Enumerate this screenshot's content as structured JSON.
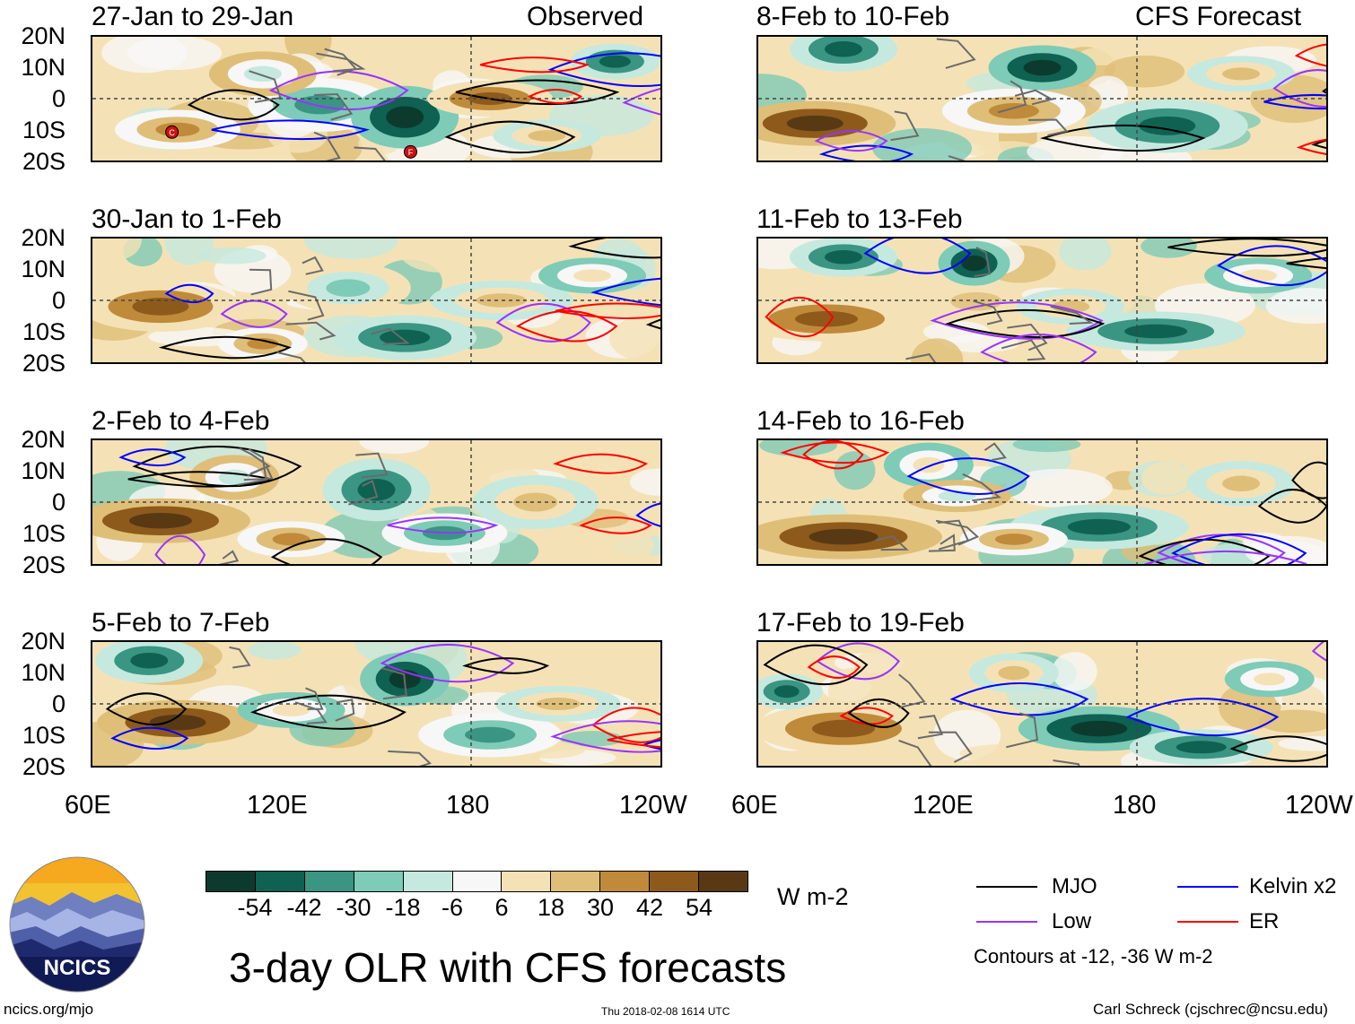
{
  "header": {
    "left_column_label": "Observed",
    "right_column_label": "CFS Forecast"
  },
  "panels": {
    "left": [
      {
        "title": "27-Jan to 29-Jan"
      },
      {
        "title": "30-Jan to 1-Feb"
      },
      {
        "title": "2-Feb to 4-Feb"
      },
      {
        "title": "5-Feb to 7-Feb"
      }
    ],
    "right": [
      {
        "title": "8-Feb to 10-Feb"
      },
      {
        "title": "11-Feb to 13-Feb"
      },
      {
        "title": "14-Feb to 16-Feb"
      },
      {
        "title": "17-Feb to 19-Feb"
      }
    ]
  },
  "axes": {
    "lat_labels": [
      "20N",
      "10N",
      "0",
      "10S",
      "20S"
    ],
    "lon_labels": [
      "60E",
      "120E",
      "180",
      "120W"
    ],
    "lat_range": [
      -20,
      20
    ],
    "lon_range": [
      60,
      240
    ]
  },
  "cyclone_markers": [
    "C",
    "F"
  ],
  "colorbar": {
    "ticks": [
      "-54",
      "-42",
      "-30",
      "-18",
      "-6",
      "6",
      "18",
      "30",
      "42",
      "54"
    ],
    "colors": [
      "#0c3b2e",
      "#0f6152",
      "#3a9583",
      "#7ecbb7",
      "#c5e9df",
      "#f7f7f7",
      "#f4e2b6",
      "#dfbe78",
      "#c08a3b",
      "#8d5a1c",
      "#593914"
    ],
    "units": "W m-2"
  },
  "title": "3-day OLR with CFS forecasts",
  "legend": {
    "items": [
      {
        "label": "MJO",
        "color": "#000000"
      },
      {
        "label": "Kelvin x2",
        "color": "#0000ff"
      },
      {
        "label": "Low",
        "color": "#9933ff"
      },
      {
        "label": "ER",
        "color": "#ff0000"
      }
    ],
    "contour_note": "Contours at -12, -36 W m-2"
  },
  "logo": {
    "text": "NCICS"
  },
  "footer": {
    "website": "ncics.org/mjo",
    "timestamp": "Thu 2018-02-08 1614 UTC",
    "credit": "Carl Schreck (cjschrec@ncsu.edu)"
  }
}
